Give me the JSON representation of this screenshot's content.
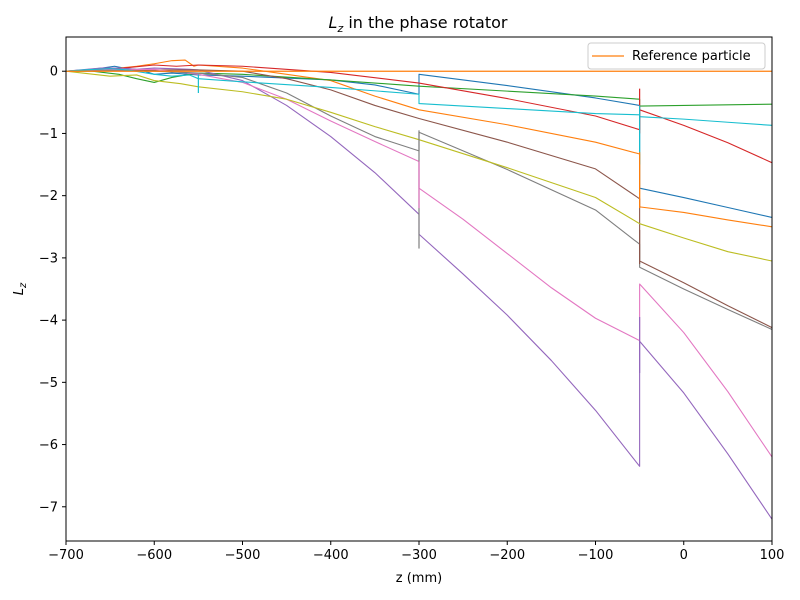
{
  "chart_data": {
    "type": "line",
    "title_main": "L",
    "title_sub": "z",
    "title_rest": " in the phase rotator",
    "xlabel": "z (mm)",
    "ylabel_main": "L",
    "ylabel_sub": "z",
    "xlim": [
      -700,
      100
    ],
    "ylim": [
      -7.55,
      0.55
    ],
    "xticks": [
      -700,
      -600,
      -500,
      -400,
      -300,
      -200,
      -100,
      0,
      100
    ],
    "yticks": [
      0,
      -1,
      -2,
      -3,
      -4,
      -5,
      -6,
      -7
    ],
    "xtick_labels": [
      "−700",
      "−600",
      "−500",
      "−400",
      "−300",
      "−200",
      "−100",
      "0",
      "100"
    ],
    "ytick_labels": [
      "0",
      "−1",
      "−2",
      "−3",
      "−4",
      "−5",
      "−6",
      "−7"
    ],
    "legend": {
      "position": "top-right",
      "label": "Reference particle"
    },
    "reference_series": {
      "label": "Reference particle",
      "color": "#ff7f0e",
      "points": [
        [
          -700,
          0
        ],
        [
          100,
          0
        ]
      ]
    },
    "series": [
      {
        "color": "#1f77b4",
        "points": [
          [
            -700,
            0
          ],
          [
            -680,
            0.02
          ],
          [
            -660,
            0.05
          ],
          [
            -645,
            0.08
          ],
          [
            -630,
            0.04
          ],
          [
            -615,
            0.02
          ],
          [
            -600,
            -0.05
          ],
          [
            -580,
            -0.03
          ],
          [
            -560,
            -0.05
          ],
          [
            -550,
            -0.06
          ],
          [
            -500,
            -0.08
          ],
          [
            -400,
            -0.14
          ],
          [
            -350,
            -0.22
          ],
          [
            -300,
            -0.37
          ],
          [
            -300,
            -0.05
          ],
          [
            -200,
            -0.23
          ],
          [
            -100,
            -0.43
          ],
          [
            -50,
            -0.55
          ],
          [
            -50,
            -1.88
          ],
          [
            0,
            -2.03
          ],
          [
            50,
            -2.19
          ],
          [
            100,
            -2.35
          ]
        ]
      },
      {
        "color": "#ff7f0e",
        "points": [
          [
            -700,
            0
          ],
          [
            -660,
            0.02
          ],
          [
            -620,
            0.08
          ],
          [
            -600,
            0.12
          ],
          [
            -580,
            0.17
          ],
          [
            -565,
            0.18
          ],
          [
            -555,
            0.08
          ],
          [
            -550,
            0.1
          ],
          [
            -500,
            0.05
          ],
          [
            -400,
            -0.15
          ],
          [
            -350,
            -0.4
          ],
          [
            -300,
            -0.62
          ],
          [
            -200,
            -0.86
          ],
          [
            -100,
            -1.14
          ],
          [
            -50,
            -1.33
          ],
          [
            -50,
            -2.18
          ],
          [
            0,
            -2.27
          ],
          [
            50,
            -2.39
          ],
          [
            100,
            -2.5
          ]
        ]
      },
      {
        "color": "#2ca02c",
        "points": [
          [
            -700,
            0
          ],
          [
            -670,
            0
          ],
          [
            -640,
            -0.05
          ],
          [
            -620,
            -0.12
          ],
          [
            -600,
            -0.18
          ],
          [
            -580,
            -0.1
          ],
          [
            -560,
            -0.05
          ],
          [
            -550,
            -0.03
          ],
          [
            -500,
            -0.05
          ],
          [
            -400,
            -0.14
          ],
          [
            -300,
            -0.24
          ],
          [
            -200,
            -0.32
          ],
          [
            -100,
            -0.4
          ],
          [
            -50,
            -0.45
          ],
          [
            -50,
            -0.56
          ],
          [
            0,
            -0.55
          ],
          [
            50,
            -0.54
          ],
          [
            100,
            -0.53
          ]
        ]
      },
      {
        "color": "#d62728",
        "points": [
          [
            -700,
            0
          ],
          [
            -650,
            0.03
          ],
          [
            -600,
            0.1
          ],
          [
            -575,
            0.08
          ],
          [
            -550,
            0.1
          ],
          [
            -500,
            0.08
          ],
          [
            -400,
            -0.02
          ],
          [
            -300,
            -0.19
          ],
          [
            -200,
            -0.44
          ],
          [
            -100,
            -0.72
          ],
          [
            -50,
            -0.94
          ],
          [
            -50,
            -0.62
          ],
          [
            0,
            -0.87
          ],
          [
            50,
            -1.15
          ],
          [
            100,
            -1.47
          ]
        ]
      },
      {
        "color": "#9467bd",
        "points": [
          [
            -700,
            0
          ],
          [
            -660,
            0.05
          ],
          [
            -640,
            0.05
          ],
          [
            -620,
            0.03
          ],
          [
            -600,
            0.05
          ],
          [
            -580,
            0.04
          ],
          [
            -560,
            0.03
          ],
          [
            -550,
            0.02
          ],
          [
            -500,
            -0.15
          ],
          [
            -450,
            -0.55
          ],
          [
            -400,
            -1.05
          ],
          [
            -350,
            -1.63
          ],
          [
            -300,
            -2.3
          ],
          [
            -300,
            -2.62
          ],
          [
            -250,
            -3.26
          ],
          [
            -200,
            -3.92
          ],
          [
            -150,
            -4.65
          ],
          [
            -100,
            -5.45
          ],
          [
            -50,
            -6.35
          ],
          [
            -50,
            -4.34
          ],
          [
            0,
            -5.17
          ],
          [
            50,
            -6.15
          ],
          [
            100,
            -7.2
          ]
        ]
      },
      {
        "color": "#8c564b",
        "points": [
          [
            -700,
            0
          ],
          [
            -650,
            0.01
          ],
          [
            -600,
            0.02
          ],
          [
            -550,
            0.02
          ],
          [
            -500,
            0.0
          ],
          [
            -450,
            -0.12
          ],
          [
            -400,
            -0.3
          ],
          [
            -350,
            -0.55
          ],
          [
            -300,
            -0.76
          ],
          [
            -200,
            -1.14
          ],
          [
            -100,
            -1.57
          ],
          [
            -50,
            -2.05
          ],
          [
            -50,
            -3.05
          ],
          [
            0,
            -3.4
          ],
          [
            50,
            -3.77
          ],
          [
            100,
            -4.12
          ]
        ]
      },
      {
        "color": "#e377c2",
        "points": [
          [
            -700,
            0
          ],
          [
            -650,
            0.02
          ],
          [
            -600,
            0.03
          ],
          [
            -550,
            -0.05
          ],
          [
            -500,
            -0.18
          ],
          [
            -450,
            -0.45
          ],
          [
            -400,
            -0.8
          ],
          [
            -350,
            -1.13
          ],
          [
            -300,
            -1.45
          ],
          [
            -300,
            -1.88
          ],
          [
            -250,
            -2.38
          ],
          [
            -200,
            -2.93
          ],
          [
            -150,
            -3.48
          ],
          [
            -100,
            -3.97
          ],
          [
            -50,
            -4.33
          ],
          [
            -50,
            -3.42
          ],
          [
            0,
            -4.2
          ],
          [
            50,
            -5.15
          ],
          [
            100,
            -6.2
          ]
        ]
      },
      {
        "color": "#7f7f7f",
        "points": [
          [
            -700,
            0
          ],
          [
            -650,
            0.01
          ],
          [
            -600,
            0.0
          ],
          [
            -550,
            -0.03
          ],
          [
            -500,
            -0.1
          ],
          [
            -450,
            -0.35
          ],
          [
            -400,
            -0.72
          ],
          [
            -350,
            -1.05
          ],
          [
            -300,
            -1.28
          ],
          [
            -300,
            -0.98
          ],
          [
            -200,
            -1.58
          ],
          [
            -100,
            -2.23
          ],
          [
            -50,
            -2.78
          ],
          [
            -50,
            -3.15
          ],
          [
            0,
            -3.5
          ],
          [
            50,
            -3.83
          ],
          [
            100,
            -4.15
          ]
        ]
      },
      {
        "color": "#bcbd22",
        "points": [
          [
            -700,
            0
          ],
          [
            -650,
            -0.08
          ],
          [
            -620,
            -0.06
          ],
          [
            -600,
            -0.15
          ],
          [
            -570,
            -0.2
          ],
          [
            -550,
            -0.25
          ],
          [
            -500,
            -0.33
          ],
          [
            -450,
            -0.45
          ],
          [
            -400,
            -0.66
          ],
          [
            -350,
            -0.89
          ],
          [
            -300,
            -1.1
          ],
          [
            -200,
            -1.55
          ],
          [
            -100,
            -2.03
          ],
          [
            -50,
            -2.45
          ],
          [
            -50,
            -2.45
          ],
          [
            0,
            -2.68
          ],
          [
            50,
            -2.9
          ],
          [
            100,
            -3.05
          ]
        ]
      },
      {
        "color": "#17becf",
        "points": [
          [
            -700,
            0
          ],
          [
            -680,
            0.02
          ],
          [
            -650,
            0.04
          ],
          [
            -630,
            0.02
          ],
          [
            -600,
            -0.05
          ],
          [
            -580,
            -0.08
          ],
          [
            -560,
            -0.06
          ],
          [
            -550,
            -0.12
          ],
          [
            -500,
            -0.17
          ],
          [
            -400,
            -0.26
          ],
          [
            -300,
            -0.37
          ],
          [
            -300,
            -0.52
          ],
          [
            -200,
            -0.6
          ],
          [
            -100,
            -0.68
          ],
          [
            -50,
            -0.7
          ],
          [
            -50,
            -0.73
          ],
          [
            0,
            -0.77
          ],
          [
            50,
            -0.82
          ],
          [
            100,
            -0.87
          ]
        ]
      }
    ],
    "spikes": [
      {
        "color": "#7f7f7f",
        "x": -300,
        "y1": -0.95,
        "y2": -2.85
      },
      {
        "color": "#e377c2",
        "x": -300,
        "y1": -1.45,
        "y2": -2.2
      },
      {
        "color": "#d62728",
        "x": -50,
        "y1": -0.28,
        "y2": -1.0
      },
      {
        "color": "#17becf",
        "x": -50,
        "y1": -0.55,
        "y2": -1.5
      },
      {
        "color": "#ff7f0e",
        "x": -50,
        "y1": -1.3,
        "y2": -2.2
      },
      {
        "color": "#8c564b",
        "x": -50,
        "y1": -2.55,
        "y2": -3.1
      },
      {
        "color": "#9467bd",
        "x": -50,
        "y1": -3.95,
        "y2": -4.85
      },
      {
        "color": "#17becf",
        "x": -550,
        "y1": -0.05,
        "y2": -0.35
      }
    ]
  }
}
